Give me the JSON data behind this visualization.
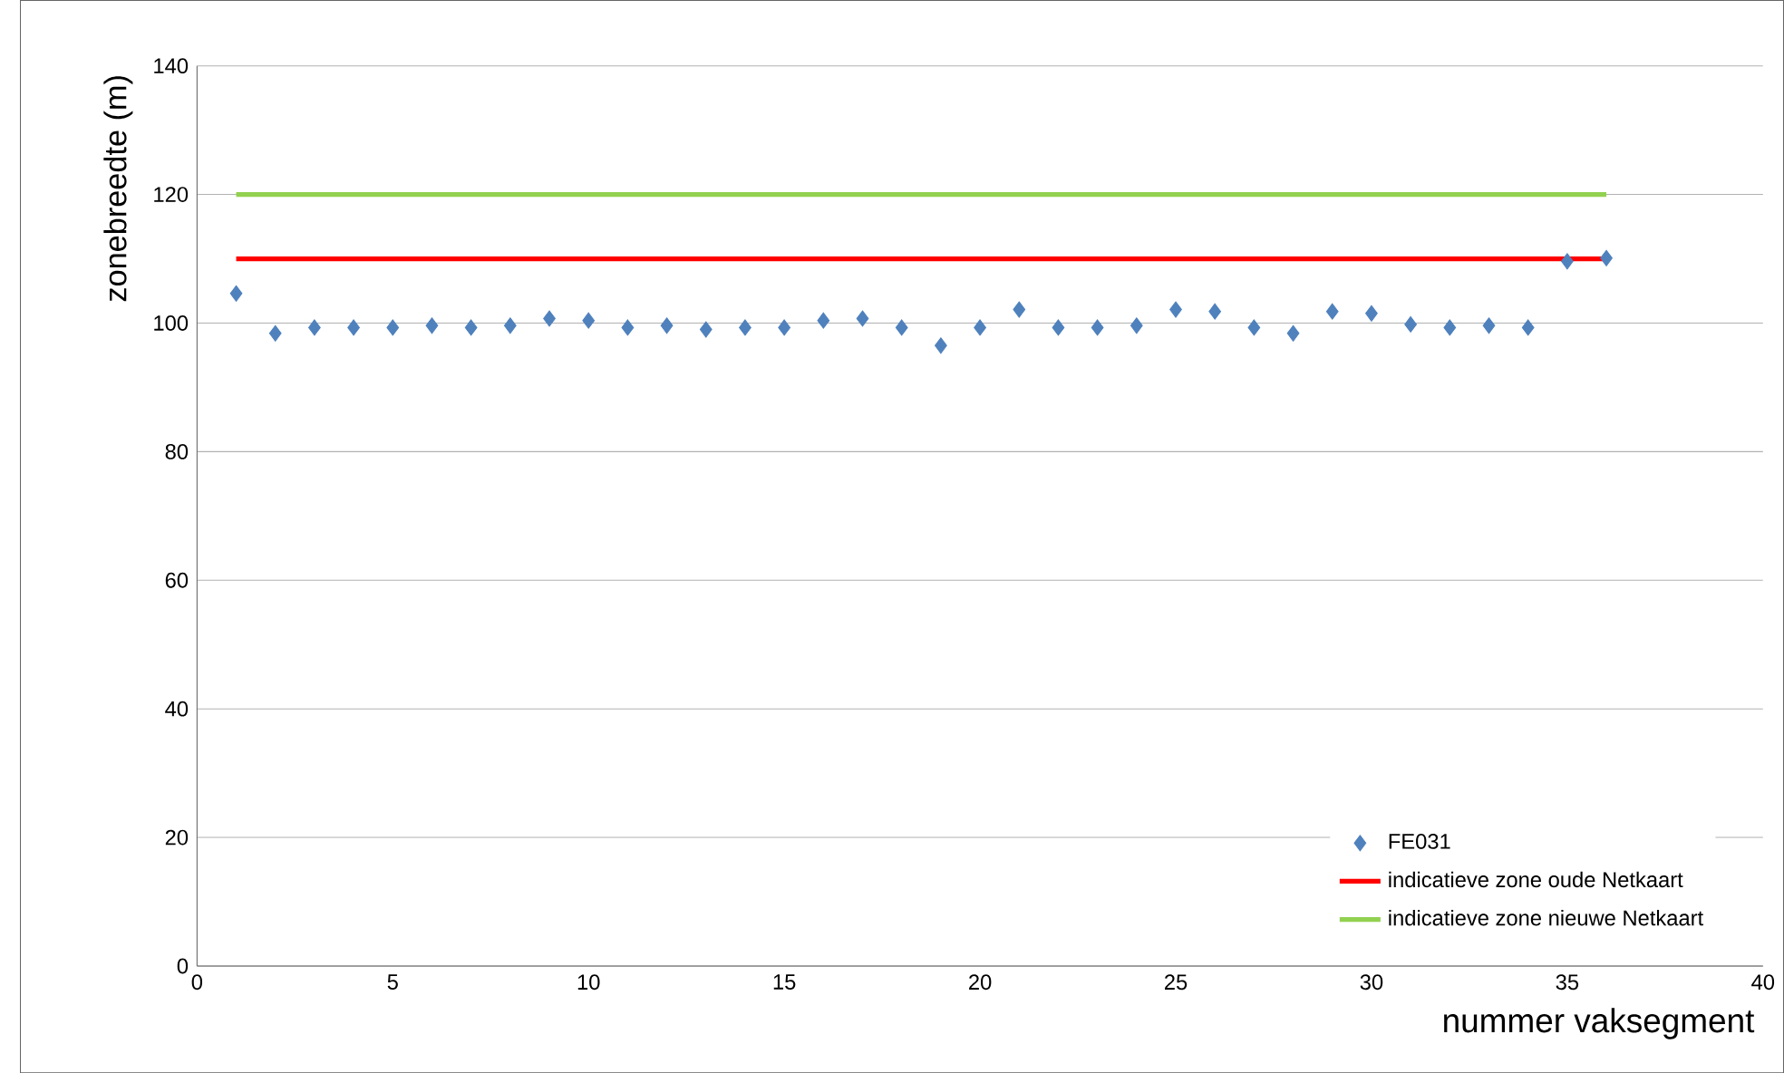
{
  "chart_data": {
    "type": "scatter",
    "xlabel": "nummer vaksegment",
    "ylabel": "zonebreedte (m)",
    "xlim": [
      0,
      40
    ],
    "ylim": [
      0,
      140
    ],
    "xticks": [
      0,
      5,
      10,
      15,
      20,
      25,
      30,
      35,
      40
    ],
    "yticks": [
      0,
      20,
      40,
      60,
      80,
      100,
      120,
      140
    ],
    "grid": "y",
    "legend": "bottom right",
    "series": [
      {
        "name": "FE031",
        "marker": "diamond",
        "color": "#4f81bd",
        "x": [
          1,
          2,
          3,
          4,
          5,
          6,
          7,
          8,
          9,
          10,
          11,
          12,
          13,
          14,
          15,
          16,
          17,
          18,
          19,
          20,
          21,
          22,
          23,
          24,
          25,
          26,
          27,
          28,
          29,
          30,
          31,
          32,
          33,
          34,
          35,
          36
        ],
        "values": [
          104.6,
          98.4,
          99.3,
          99.3,
          99.3,
          99.6,
          99.3,
          99.6,
          100.7,
          100.4,
          99.3,
          99.6,
          99.0,
          99.3,
          99.3,
          100.4,
          100.7,
          99.3,
          96.5,
          99.3,
          102.1,
          99.3,
          99.3,
          99.6,
          102.1,
          101.8,
          99.3,
          98.4,
          101.8,
          101.5,
          99.8,
          99.3,
          99.6,
          99.3,
          109.6,
          110.1
        ]
      },
      {
        "name": "indicatieve zone oude Netkaart",
        "type": "line",
        "line_style": "solid",
        "color": "#ff0000",
        "x": [
          1,
          36
        ],
        "values": [
          110,
          110
        ]
      },
      {
        "name": "indicatieve zone nieuwe Netkaart",
        "type": "line",
        "line_style": "solid",
        "color": "#92d050",
        "x": [
          1,
          36
        ],
        "values": [
          120,
          120
        ]
      }
    ]
  }
}
